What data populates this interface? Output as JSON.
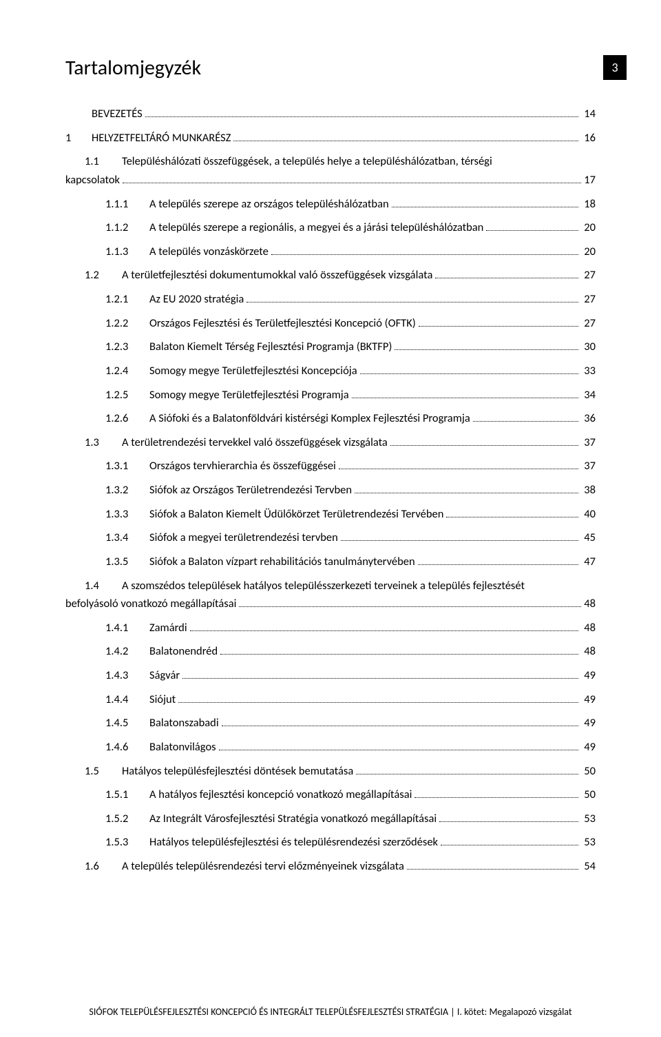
{
  "page_number": "3",
  "title": "Tartalomjegyzék",
  "footer": "SIÓFOK TELEPÜLÉSFEJLESZTÉSI KONCEPCIÓ ÉS INTEGRÁLT TELEPÜLÉSFEJLESZTÉSI STRATÉGIA | I. kötet: Megalapozó vizsgálat",
  "colors": {
    "bg": "#ffffff",
    "text": "#000000",
    "box_bg": "#000000",
    "box_fg": "#ffffff"
  },
  "fontsize": {
    "title": 30,
    "body": 16.5,
    "footer": 14
  },
  "toc": [
    {
      "level": 0,
      "num": "",
      "label": "BEVEZETÉS",
      "page": "14"
    },
    {
      "level": 0,
      "num": "1",
      "label": "HELYZETFELTÁRÓ MUNKARÉSZ",
      "page": "16"
    },
    {
      "level": 1,
      "num": "1.1",
      "label": "Településhálózati összefüggések, a település helye a településhálózatban, térségi kapcsolatok",
      "page": "17",
      "wrap": true
    },
    {
      "level": 2,
      "num": "1.1.1",
      "label": "A település szerepe az országos településhálózatban",
      "page": "18"
    },
    {
      "level": 2,
      "num": "1.1.2",
      "label": "A település szerepe a regionális, a megyei és a járási településhálózatban",
      "page": "20"
    },
    {
      "level": 2,
      "num": "1.1.3",
      "label": "A település vonzáskörzete",
      "page": "20"
    },
    {
      "level": 1,
      "num": "1.2",
      "label": "A területfejlesztési dokumentumokkal való összefüggések vizsgálata",
      "page": "27"
    },
    {
      "level": 2,
      "num": "1.2.1",
      "label": "Az EU 2020 stratégia",
      "page": "27"
    },
    {
      "level": 2,
      "num": "1.2.2",
      "label": "Országos Fejlesztési és Területfejlesztési Koncepció (OFTK)",
      "page": "27"
    },
    {
      "level": 2,
      "num": "1.2.3",
      "label": "Balaton Kiemelt Térség Fejlesztési Programja (BKTFP)",
      "page": "30"
    },
    {
      "level": 2,
      "num": "1.2.4",
      "label": "Somogy megye Területfejlesztési Koncepciója",
      "page": "33"
    },
    {
      "level": 2,
      "num": "1.2.5",
      "label": "Somogy megye Területfejlesztési Programja",
      "page": "34"
    },
    {
      "level": 2,
      "num": "1.2.6",
      "label": "A Siófoki és a Balatonföldvári kistérségi Komplex Fejlesztési Programja",
      "page": "36"
    },
    {
      "level": 1,
      "num": "1.3",
      "label": "A területrendezési tervekkel való összefüggések vizsgálata",
      "page": "37"
    },
    {
      "level": 2,
      "num": "1.3.1",
      "label": "Országos tervhierarchia és összefüggései",
      "page": "37"
    },
    {
      "level": 2,
      "num": "1.3.2",
      "label": "Siófok az Országos Területrendezési Tervben",
      "page": "38"
    },
    {
      "level": 2,
      "num": "1.3.3",
      "label": "Siófok a Balaton Kiemelt Üdülőkörzet Területrendezési Tervében",
      "page": "40"
    },
    {
      "level": 2,
      "num": "1.3.4",
      "label": "Siófok a megyei területrendezési tervben",
      "page": "45"
    },
    {
      "level": 2,
      "num": "1.3.5",
      "label": "Siófok a Balaton vízpart rehabilitációs tanulmánytervében",
      "page": "47"
    },
    {
      "level": 1,
      "num": "1.4",
      "label": "A szomszédos települések hatályos településszerkezeti terveinek a település fejlesztését befolyásoló vonatkozó megállapításai",
      "page": "48",
      "wrap": true
    },
    {
      "level": 2,
      "num": "1.4.1",
      "label": "Zamárdi",
      "page": "48"
    },
    {
      "level": 2,
      "num": "1.4.2",
      "label": "Balatonendréd",
      "page": "48"
    },
    {
      "level": 2,
      "num": "1.4.3",
      "label": "Ságvár",
      "page": "49"
    },
    {
      "level": 2,
      "num": "1.4.4",
      "label": "Siójut",
      "page": "49"
    },
    {
      "level": 2,
      "num": "1.4.5",
      "label": "Balatonszabadi",
      "page": "49"
    },
    {
      "level": 2,
      "num": "1.4.6",
      "label": "Balatonvilágos",
      "page": "49"
    },
    {
      "level": 1,
      "num": "1.5",
      "label": "Hatályos településfejlesztési döntések bemutatása",
      "page": "50"
    },
    {
      "level": 2,
      "num": "1.5.1",
      "label": "A hatályos fejlesztési koncepció vonatkozó megállapításai",
      "page": "50"
    },
    {
      "level": 2,
      "num": "1.5.2",
      "label": "Az Integrált Városfejlesztési Stratégia vonatkozó megállapításai",
      "page": "53"
    },
    {
      "level": 2,
      "num": "1.5.3",
      "label": "Hatályos településfejlesztési és településrendezési szerződések",
      "page": "53"
    },
    {
      "level": 1,
      "num": "1.6",
      "label": "A település településrendezési tervi előzményeinek vizsgálata",
      "page": "54"
    }
  ]
}
